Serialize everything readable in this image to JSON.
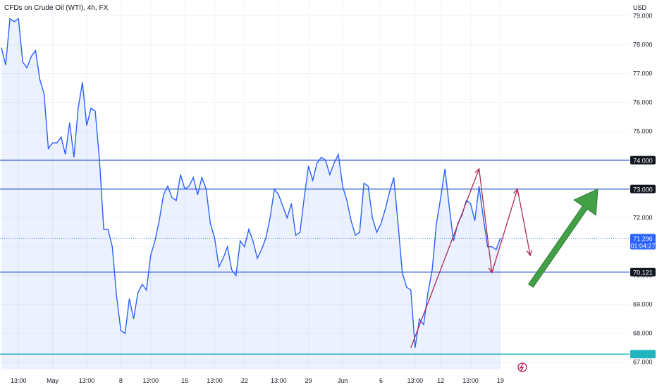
{
  "header": {
    "title": "CFDs on Crude Oil (WTI), 4h, FX"
  },
  "colors": {
    "line": "#2962ff",
    "fill": "#2962ff",
    "grid": "#f0f3fa",
    "level_line": "#3a5fd6",
    "support_low": "#22b5bf",
    "annotation": "#b0284f",
    "arrow_fill": "#43a047",
    "arrow_stroke": "#2e7d32",
    "badge_dark": "#131722",
    "badge_blue": "#2962ff",
    "badge_teal": "#22b5bf",
    "flash_icon": "#c2185b"
  },
  "chart_data": {
    "type": "line",
    "title": "CFDs on Crude Oil (WTI), 4h, FX",
    "ylabel": "USD",
    "ylim": [
      66.75,
      79.55
    ],
    "y_ticks": [
      "79.000",
      "78.000",
      "77.000",
      "76.000",
      "75.000",
      "74.000",
      "73.000",
      "72.000",
      "71.000",
      "70.000",
      "69.000",
      "68.000",
      "67.000"
    ],
    "x_ticks": [
      {
        "i": 4,
        "label": "13:00"
      },
      {
        "i": 12,
        "label": "May"
      },
      {
        "i": 20,
        "label": "13:00"
      },
      {
        "i": 28,
        "label": "8"
      },
      {
        "i": 35,
        "label": "13:00"
      },
      {
        "i": 43,
        "label": "15"
      },
      {
        "i": 50,
        "label": "13:00"
      },
      {
        "i": 57,
        "label": "22"
      },
      {
        "i": 65,
        "label": "13:00"
      },
      {
        "i": 72,
        "label": "29"
      },
      {
        "i": 80,
        "label": "Jun"
      },
      {
        "i": 89,
        "label": "6"
      },
      {
        "i": 97,
        "label": "13:00"
      },
      {
        "i": 103,
        "label": "12"
      },
      {
        "i": 110,
        "label": "13:00"
      },
      {
        "i": 117,
        "label": "19"
      }
    ],
    "series": [
      {
        "values": [
          77.9,
          77.3,
          78.9,
          78.8,
          78.9,
          77.4,
          77.2,
          77.6,
          77.8,
          76.8,
          76.3,
          74.4,
          74.6,
          74.6,
          74.8,
          74.2,
          75.3,
          74.1,
          75.8,
          76.7,
          75.2,
          75.8,
          75.7,
          74.0,
          71.6,
          71.6,
          71.0,
          69.3,
          68.1,
          68.0,
          69.2,
          68.5,
          69.4,
          69.7,
          69.5,
          70.7,
          71.2,
          71.9,
          72.8,
          73.1,
          72.7,
          72.6,
          73.5,
          73.0,
          73.1,
          73.4,
          72.8,
          73.4,
          73.0,
          71.8,
          71.3,
          70.3,
          70.6,
          71.0,
          70.2,
          70.0,
          71.2,
          71.0,
          71.6,
          71.2,
          70.6,
          70.9,
          71.3,
          72.0,
          73.0,
          72.8,
          72.4,
          72.0,
          72.5,
          71.4,
          71.5,
          72.7,
          73.8,
          73.3,
          73.9,
          74.1,
          74.0,
          73.5,
          73.9,
          74.2,
          73.1,
          72.6,
          71.9,
          71.4,
          71.5,
          73.2,
          73.1,
          72.0,
          71.5,
          71.8,
          72.3,
          72.9,
          73.4,
          71.8,
          70.1,
          69.6,
          69.5,
          67.5,
          68.5,
          68.3,
          69.4,
          70.2,
          71.8,
          72.7,
          73.7,
          72.4,
          71.2,
          71.8,
          72.1,
          72.6,
          72.5,
          71.9,
          73.1,
          72.0,
          71.0,
          71.0,
          70.9,
          71.3
        ],
        "last_value": 71.296
      }
    ],
    "levels": [
      {
        "name": "resistance-74",
        "value": 74.0,
        "label": "74.000",
        "style": "blue"
      },
      {
        "name": "resistance-73",
        "value": 73.0,
        "label": "73.000",
        "style": "blue"
      },
      {
        "name": "support-70",
        "value": 70.121,
        "label": "70.121",
        "style": "blue"
      },
      {
        "name": "support-low",
        "value": 67.28,
        "label": "",
        "style": "teal"
      }
    ],
    "price_badge": {
      "value": "71.296",
      "countdown": "01:04:27"
    },
    "annotation_points": [
      [
        96,
        67.5
      ],
      [
        112,
        73.7
      ],
      [
        115,
        70.1
      ],
      [
        121,
        73.0
      ],
      [
        124,
        70.7
      ]
    ]
  }
}
